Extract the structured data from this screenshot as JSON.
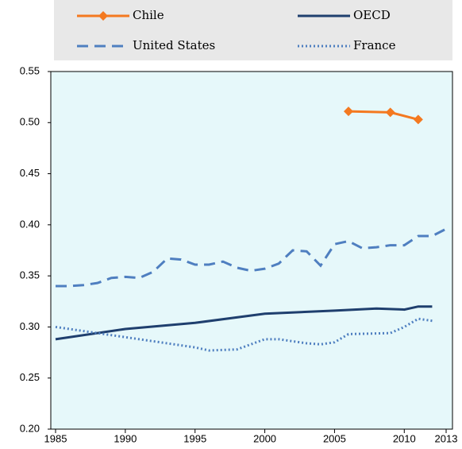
{
  "chart_data": {
    "type": "line",
    "series": [
      {
        "name": "Chile",
        "color": "#f47920",
        "line_style": "solid",
        "marker": "diamond",
        "x": [
          2006,
          2009,
          2011
        ],
        "values": [
          0.511,
          0.51,
          0.503
        ]
      },
      {
        "name": "OECD",
        "color": "#1f3f6e",
        "line_style": "solid",
        "x": [
          1985,
          1990,
          1995,
          2000,
          2005,
          2008,
          2010,
          2011,
          2012
        ],
        "values": [
          0.288,
          0.298,
          0.304,
          0.313,
          0.316,
          0.318,
          0.317,
          0.32,
          0.32
        ]
      },
      {
        "name": "United States",
        "color": "#4f7fc0",
        "line_style": "dashed",
        "x": [
          1985,
          1986,
          1987,
          1988,
          1989,
          1990,
          1991,
          1992,
          1993,
          1994,
          1995,
          1996,
          1997,
          1998,
          1999,
          2000,
          2001,
          2002,
          2003,
          2004,
          2005,
          2006,
          2007,
          2008,
          2009,
          2010,
          2011,
          2012,
          2013
        ],
        "values": [
          0.34,
          0.34,
          0.341,
          0.343,
          0.348,
          0.349,
          0.348,
          0.354,
          0.367,
          0.366,
          0.361,
          0.361,
          0.364,
          0.358,
          0.355,
          0.357,
          0.362,
          0.375,
          0.374,
          0.36,
          0.381,
          0.384,
          0.377,
          0.378,
          0.38,
          0.38,
          0.389,
          0.389,
          0.396
        ]
      },
      {
        "name": "France",
        "color": "#4f7fc0",
        "line_style": "dotted",
        "x": [
          1985,
          1990,
          1995,
          1996,
          1998,
          2000,
          2001,
          2003,
          2004,
          2005,
          2006,
          2009,
          2010,
          2011,
          2012
        ],
        "values": [
          0.3,
          0.29,
          0.28,
          0.277,
          0.278,
          0.288,
          0.288,
          0.284,
          0.283,
          0.285,
          0.293,
          0.294,
          0.3,
          0.308,
          0.306
        ]
      }
    ],
    "xlim": [
      1985,
      2013
    ],
    "xticks": [
      1985,
      1990,
      1995,
      2000,
      2005,
      2010,
      2013
    ],
    "ylim": [
      0.2,
      0.55
    ],
    "yticks": [
      {
        "value": 0.2,
        "label": "0.20"
      },
      0.25,
      {
        "value": 0.3,
        "label": "0.30"
      },
      0.35,
      {
        "value": 0.4,
        "label": "0.40"
      },
      0.45,
      {
        "value": 0.5,
        "label": "0.50"
      },
      0.55
    ]
  }
}
